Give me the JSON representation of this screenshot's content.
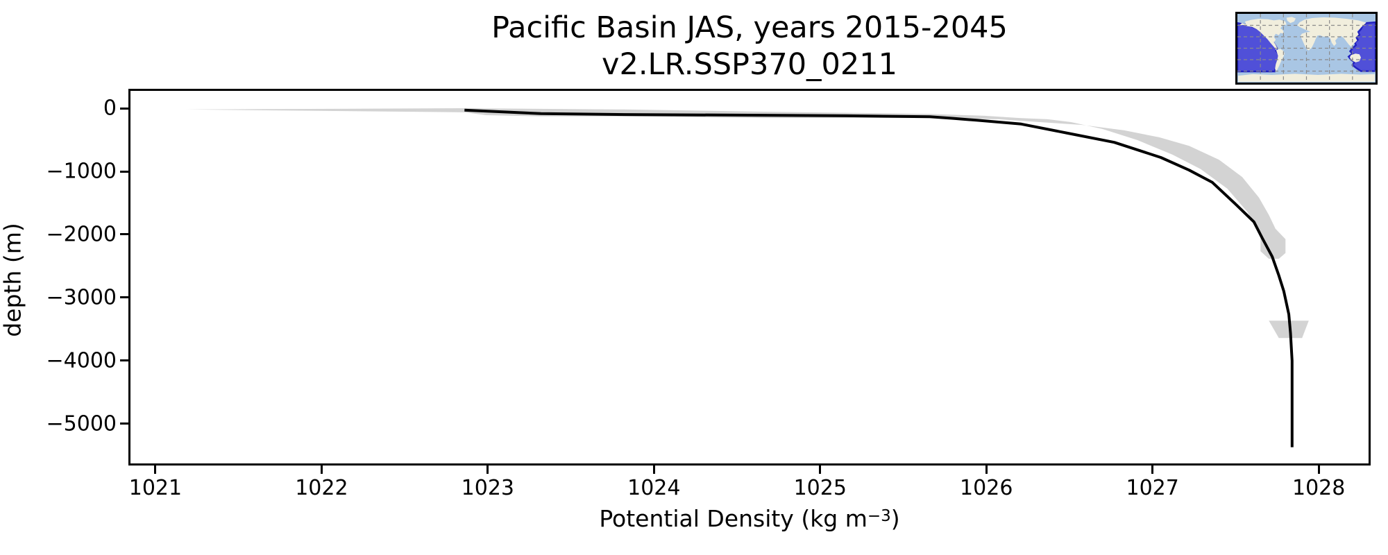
{
  "figure": {
    "background": "#ffffff",
    "title_line1": "Pacific Basin JAS, years 2015-2045",
    "title_line2": "v2.LR.SSP370_0211"
  },
  "axes_labels": {
    "y": "depth (m)",
    "x_prefix": "Potential Density (kg m",
    "x_sup": "−3",
    "x_suffix": ")"
  },
  "chart_data": {
    "type": "line",
    "title": "Pacific Basin JAS, years 2015-2045\nv2.LR.SSP370_0211",
    "xlabel": "Potential Density (kg m⁻³)",
    "ylabel": "depth (m)",
    "xlim": [
      1020.85,
      1028.3
    ],
    "ylim": [
      -5627,
      275
    ],
    "grid": false,
    "x_ticks": {
      "values": [
        1021,
        1022,
        1023,
        1024,
        1025,
        1026,
        1027,
        1028
      ],
      "labels": [
        "1021",
        "1022",
        "1023",
        "1024",
        "1025",
        "1026",
        "1027",
        "1028"
      ]
    },
    "y_ticks": {
      "values": [
        0,
        -1000,
        -2000,
        -3000,
        -4000,
        -5000
      ],
      "labels": [
        "0",
        "−1000",
        "−2000",
        "−3000",
        "−4000",
        "−5000"
      ]
    },
    "series": [
      {
        "name": "mean potential density profile",
        "color": "#000000",
        "width": 4,
        "points": [
          [
            1022.86,
            -30
          ],
          [
            1023.32,
            -85
          ],
          [
            1023.82,
            -100
          ],
          [
            1024.57,
            -110
          ],
          [
            1025.16,
            -120
          ],
          [
            1025.66,
            -135
          ],
          [
            1025.8,
            -160
          ],
          [
            1025.94,
            -190
          ],
          [
            1026.21,
            -250
          ],
          [
            1026.49,
            -395
          ],
          [
            1026.77,
            -540
          ],
          [
            1027.05,
            -780
          ],
          [
            1027.22,
            -980
          ],
          [
            1027.36,
            -1175
          ],
          [
            1027.49,
            -1495
          ],
          [
            1027.61,
            -1800
          ],
          [
            1027.66,
            -2055
          ],
          [
            1027.72,
            -2350
          ],
          [
            1027.76,
            -2650
          ],
          [
            1027.79,
            -2900
          ],
          [
            1027.82,
            -3265
          ],
          [
            1027.83,
            -3560
          ],
          [
            1027.84,
            -4000
          ],
          [
            1027.84,
            -4660
          ],
          [
            1027.84,
            -5370
          ]
        ]
      }
    ],
    "uncertainty_band": {
      "name": "min-max spread band",
      "color": "#d3d3d3",
      "polygons": [
        [
          [
            1021.18,
            -20
          ],
          [
            1022.86,
            0
          ],
          [
            1023.82,
            -20
          ],
          [
            1024.66,
            -55
          ],
          [
            1025.66,
            -90
          ],
          [
            1025.99,
            -120
          ],
          [
            1026.2,
            -155
          ],
          [
            1026.37,
            -175
          ],
          [
            1026.51,
            -220
          ],
          [
            1026.7,
            -330
          ],
          [
            1026.91,
            -505
          ],
          [
            1027.12,
            -735
          ],
          [
            1027.29,
            -965
          ],
          [
            1027.45,
            -1275
          ],
          [
            1027.57,
            -1640
          ],
          [
            1027.65,
            -2020
          ],
          [
            1027.65,
            -2265
          ],
          [
            1027.7,
            -2385
          ],
          [
            1027.76,
            -2385
          ],
          [
            1027.8,
            -2295
          ],
          [
            1027.8,
            -2075
          ],
          [
            1027.74,
            -1910
          ],
          [
            1027.7,
            -1690
          ],
          [
            1027.64,
            -1415
          ],
          [
            1027.54,
            -1090
          ],
          [
            1027.4,
            -815
          ],
          [
            1027.22,
            -595
          ],
          [
            1027.04,
            -460
          ],
          [
            1026.83,
            -350
          ],
          [
            1026.58,
            -265
          ],
          [
            1026.32,
            -220
          ],
          [
            1026.07,
            -175
          ],
          [
            1025.66,
            -155
          ],
          [
            1024.66,
            -155
          ],
          [
            1023.82,
            -130
          ],
          [
            1023.32,
            -130
          ],
          [
            1022.99,
            -110
          ],
          [
            1022.86,
            -65
          ]
        ],
        [
          [
            1027.7,
            -3365
          ],
          [
            1027.94,
            -3365
          ],
          [
            1027.9,
            -3640
          ],
          [
            1027.76,
            -3640
          ]
        ]
      ]
    }
  },
  "inset_map": {
    "region_name": "Pacific Basin",
    "colors": {
      "ocean": "#a9c6e4",
      "land": "#f1eedd",
      "highlight_fill": "#5050d8",
      "highlight_edge": "#2222c0",
      "gridline": "#8a8a8a",
      "border": "#000000"
    }
  }
}
